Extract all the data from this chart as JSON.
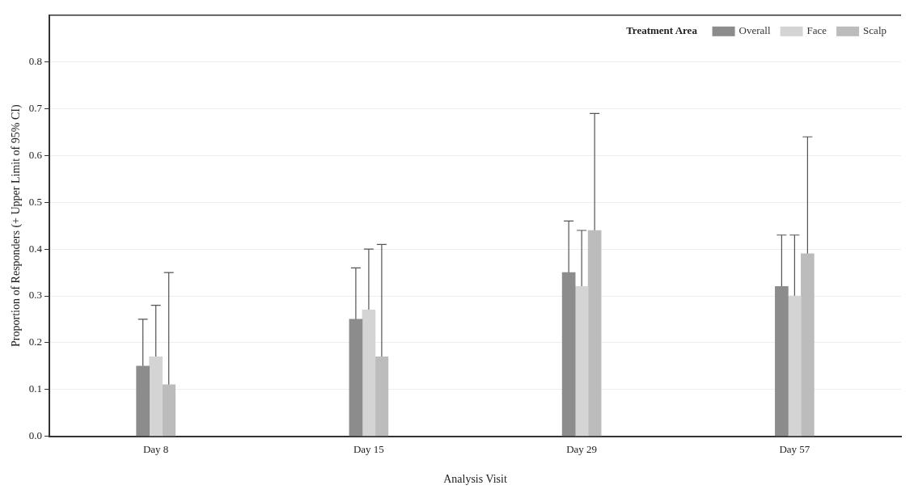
{
  "chart_data": {
    "type": "bar",
    "xlabel": "Analysis Visit",
    "ylabel": "Proportion of Responders (+ Upper Limit of 95% CI)",
    "legend_title": "Treatment Area",
    "categories": [
      "Day 8",
      "Day 15",
      "Day 29",
      "Day 57"
    ],
    "series": [
      {
        "name": "Overall",
        "color": "#8c8c8c",
        "values": [
          0.15,
          0.25,
          0.35,
          0.32
        ],
        "errors": [
          [
            0.15,
            0.25
          ],
          [
            0.25,
            0.36
          ],
          [
            0.35,
            0.46
          ],
          [
            0.32,
            0.43
          ]
        ]
      },
      {
        "name": "Face",
        "color": "#d4d4d4",
        "values": [
          0.17,
          0.27,
          0.32,
          0.3
        ],
        "errors": [
          [
            0.17,
            0.28
          ],
          [
            0.27,
            0.4
          ],
          [
            0.32,
            0.44
          ],
          [
            0.3,
            0.43
          ]
        ]
      },
      {
        "name": "Scalp",
        "color": "#bcbcbc",
        "values": [
          0.11,
          0.17,
          0.44,
          0.39
        ],
        "errors": [
          [
            0.11,
            0.35
          ],
          [
            0.17,
            0.41
          ],
          [
            0.44,
            0.69
          ],
          [
            0.39,
            0.64
          ]
        ]
      }
    ],
    "ylim": [
      0,
      0.9
    ],
    "yticks": [
      {
        "value": 0,
        "label": "0.0"
      },
      0.1,
      0.2,
      0.3,
      0.4,
      0.5,
      0.6,
      0.7,
      0.8
    ],
    "grid": "y",
    "legend": "top right"
  }
}
